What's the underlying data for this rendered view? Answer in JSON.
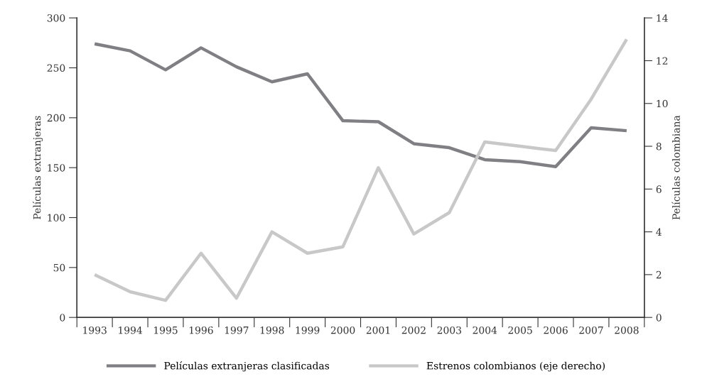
{
  "chart_data": {
    "type": "line",
    "categories": [
      "1993",
      "1994",
      "1995",
      "1996",
      "1997",
      "1998",
      "1999",
      "2000",
      "2001",
      "2002",
      "2003",
      "2004",
      "2005",
      "2006",
      "2007",
      "2008"
    ],
    "ylabel": "Películas extranjeras",
    "y2label": "Películas colombiana",
    "ylim": [
      0,
      300
    ],
    "yticks": [
      0,
      50,
      100,
      150,
      200,
      250,
      300
    ],
    "y2lim": [
      0,
      14
    ],
    "y2ticks": [
      0,
      2,
      4,
      6,
      8,
      10,
      12,
      14
    ],
    "grid": false,
    "legend": "bottom",
    "marker": "none",
    "line_style": "solid",
    "series": [
      {
        "name": "Películas extranjeras clasificadas",
        "color": "#808084",
        "values": [
          274,
          267,
          248,
          270,
          251,
          236,
          244,
          197,
          196,
          174,
          170,
          158,
          156,
          151,
          190,
          187
        ]
      },
      {
        "name": "Estrenos colombianos (eje derecho)",
        "color": "#c8c8c8",
        "axis": "y2",
        "values": [
          2,
          1.2,
          0.8,
          3,
          0.9,
          4,
          3,
          3.3,
          7,
          3.9,
          4.9,
          8.2,
          8,
          7.8,
          10.2,
          13
        ]
      }
    ]
  }
}
